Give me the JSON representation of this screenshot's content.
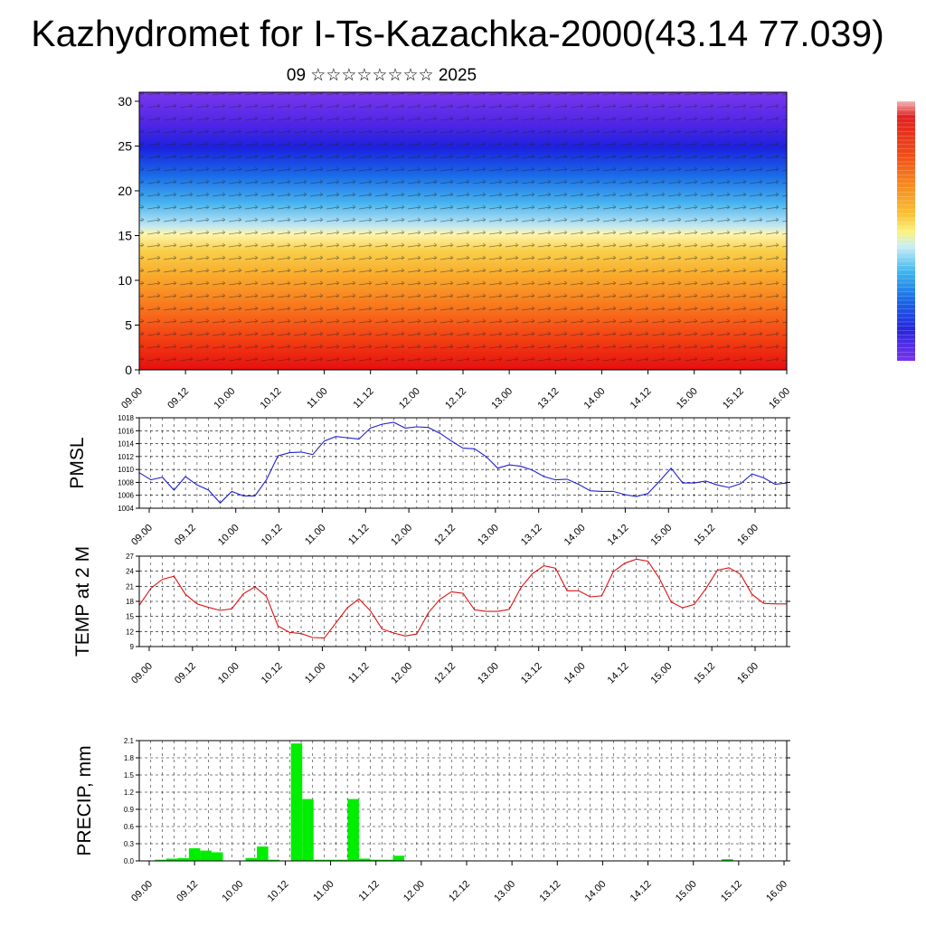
{
  "title": "Kazhydromet for I-Ts-Kazachka-2000(43.14 77.039)",
  "subtitle": "09 ☆☆☆☆☆☆☆☆ 2025",
  "time_labels": [
    "09.00",
    "09.12",
    "10.00",
    "10.12",
    "11.00",
    "11.12",
    "12.00",
    "12.12",
    "13.00",
    "13.12",
    "14.00",
    "14.12",
    "15.00",
    "15.12",
    "16.00"
  ],
  "colors": {
    "pmsl_line": "#1f1fd6",
    "temp_line": "#e01010",
    "precip_bar": "#00ee00",
    "colorbar_top": "#e02020",
    "colorbar_bottom": "#6a2ee8"
  },
  "chart_data": [
    {
      "type": "heatmap",
      "name": "vertical cross-section",
      "ylim": [
        0,
        30
      ],
      "yticks": [
        "0",
        "5",
        "10",
        "15",
        "20",
        "25",
        "30"
      ],
      "x_range": [
        0,
        14
      ],
      "grid": false,
      "legend": "right"
    },
    {
      "type": "line",
      "ylabel": "PMSL",
      "ylim": [
        1004,
        1018
      ],
      "yticks": [
        "1004",
        "1006",
        "1008",
        "1010",
        "1012",
        "1014",
        "1016",
        "1018"
      ],
      "x": [
        0,
        0.25,
        0.5,
        0.75,
        1,
        1.25,
        1.5,
        1.75,
        2,
        2.25,
        2.5,
        2.75,
        3,
        3.25,
        3.5,
        3.75,
        4,
        4.25,
        4.5,
        4.75,
        5,
        5.25,
        5.5,
        5.75,
        6,
        6.25,
        6.5,
        6.75,
        7,
        7.25,
        7.5,
        7.75,
        8,
        8.25,
        8.5,
        8.75,
        9,
        9.25,
        9.5,
        9.75,
        10,
        10.25,
        10.5,
        10.75,
        11,
        11.25,
        11.5,
        11.75,
        12,
        12.25,
        12.5,
        12.75,
        13,
        13.25,
        13.5,
        13.75,
        14
      ],
      "values": [
        1009.5,
        1008.4,
        1008.8,
        1006.8,
        1008.9,
        1007.6,
        1006.8,
        1004.8,
        1006.6,
        1005.9,
        1005.9,
        1008.4,
        1012.1,
        1012.6,
        1012.7,
        1012.3,
        1014.4,
        1015.1,
        1014.9,
        1014.7,
        1016.4,
        1017,
        1017.3,
        1016.4,
        1016.6,
        1016.5,
        1015.6,
        1014.4,
        1013.3,
        1013.2,
        1012,
        1010.2,
        1010.7,
        1010.5,
        1009.9,
        1008.9,
        1008.4,
        1008.5,
        1007.7,
        1006.7,
        1006.6,
        1006.6,
        1006.1,
        1005.8,
        1006.3,
        1008.2,
        1010.2,
        1007.9,
        1007.9,
        1008.2,
        1007.6,
        1007.2,
        1007.8,
        1009.3,
        1008.7,
        1007.7,
        1007.9
      ]
    },
    {
      "type": "line",
      "ylabel": "TEMP at 2 M",
      "ylim": [
        9,
        27
      ],
      "yticks": [
        "9",
        "12",
        "15",
        "18",
        "21",
        "24",
        "27"
      ],
      "x": [
        0,
        0.25,
        0.5,
        0.75,
        1,
        1.25,
        1.5,
        1.75,
        2,
        2.25,
        2.5,
        2.75,
        3,
        3.25,
        3.5,
        3.75,
        4,
        4.25,
        4.5,
        4.75,
        5,
        5.25,
        5.5,
        5.75,
        6,
        6.25,
        6.5,
        6.75,
        7,
        7.25,
        7.5,
        7.75,
        8,
        8.25,
        8.5,
        8.75,
        9,
        9.25,
        9.5,
        9.75,
        10,
        10.25,
        10.5,
        10.75,
        11,
        11.25,
        11.5,
        11.75,
        12,
        12.25,
        12.5,
        12.75,
        13,
        13.25,
        13.5,
        13.75,
        14
      ],
      "values": [
        17.2,
        20.6,
        22.4,
        23,
        19.4,
        17.5,
        16.8,
        16.2,
        16.5,
        19.5,
        20.9,
        19,
        13.1,
        11.8,
        11.6,
        10.8,
        10.7,
        13.7,
        16.7,
        18.5,
        16.1,
        12.5,
        11.7,
        11.1,
        11.5,
        15.7,
        18.4,
        19.9,
        19.6,
        16.3,
        16,
        16,
        16.4,
        20.7,
        23.5,
        25.1,
        24.6,
        20.1,
        20.1,
        18.9,
        19.1,
        23.9,
        25.6,
        26.4,
        26,
        22.5,
        17.9,
        16.7,
        17.4,
        20.5,
        24.2,
        24.7,
        23.4,
        19.4,
        17.6,
        17.5,
        17.5
      ]
    },
    {
      "type": "bar",
      "ylabel": "PRECIP, mm",
      "ylim": [
        0,
        2.1
      ],
      "yticks": [
        "0.0",
        "0.3",
        "0.6",
        "0.9",
        "1.2",
        "1.5",
        "1.8",
        "2.1"
      ],
      "x": [
        0,
        0.25,
        0.5,
        0.75,
        1,
        1.25,
        1.5,
        1.75,
        2,
        2.25,
        2.5,
        2.75,
        3,
        3.25,
        3.5,
        3.75,
        4,
        4.25,
        4.5,
        4.75,
        5,
        5.25,
        5.5,
        5.75,
        6,
        6.25,
        6.5,
        6.75,
        7,
        7.25,
        7.5,
        7.75,
        8,
        8.25,
        8.5,
        8.75,
        9,
        9.25,
        9.5,
        9.75,
        10,
        10.25,
        10.5,
        10.75,
        11,
        11.25,
        11.5,
        11.75,
        12,
        12.25,
        12.5,
        12.75,
        13,
        13.25,
        13.5,
        13.75,
        14
      ],
      "values": [
        0,
        0.02,
        0.04,
        0.05,
        0.22,
        0.18,
        0.15,
        0,
        0,
        0.05,
        0.25,
        0.02,
        0,
        2.05,
        1.08,
        0.02,
        0.02,
        0.02,
        1.08,
        0.04,
        0.02,
        0.02,
        0.09,
        0,
        0,
        0,
        0,
        0,
        0,
        0,
        0,
        0,
        0,
        0,
        0,
        0,
        0,
        0,
        0,
        0,
        0,
        0,
        0,
        0,
        0,
        0,
        0,
        0,
        0,
        0,
        0,
        0.03,
        0,
        0,
        0,
        0,
        0
      ]
    }
  ]
}
